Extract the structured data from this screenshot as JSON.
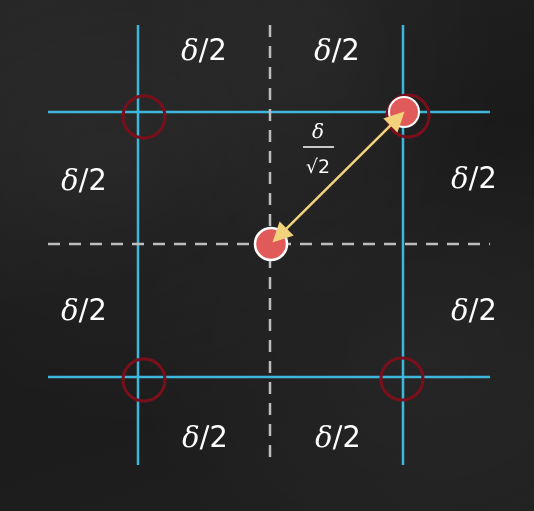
{
  "labels": {
    "half_delta_symbol": "δ",
    "half_delta_rest": "/2",
    "diag_numerator": "δ",
    "diag_radical": "√2"
  },
  "colors": {
    "grid_line": "#3fb7dc",
    "dashed_line": "#bdbdbd",
    "point_fill": "#e05a5a",
    "point_stroke": "#ffffff",
    "ring_stroke": "#7a0f1c",
    "arrow": "#f2d27a",
    "text": "#ffffff"
  }
}
